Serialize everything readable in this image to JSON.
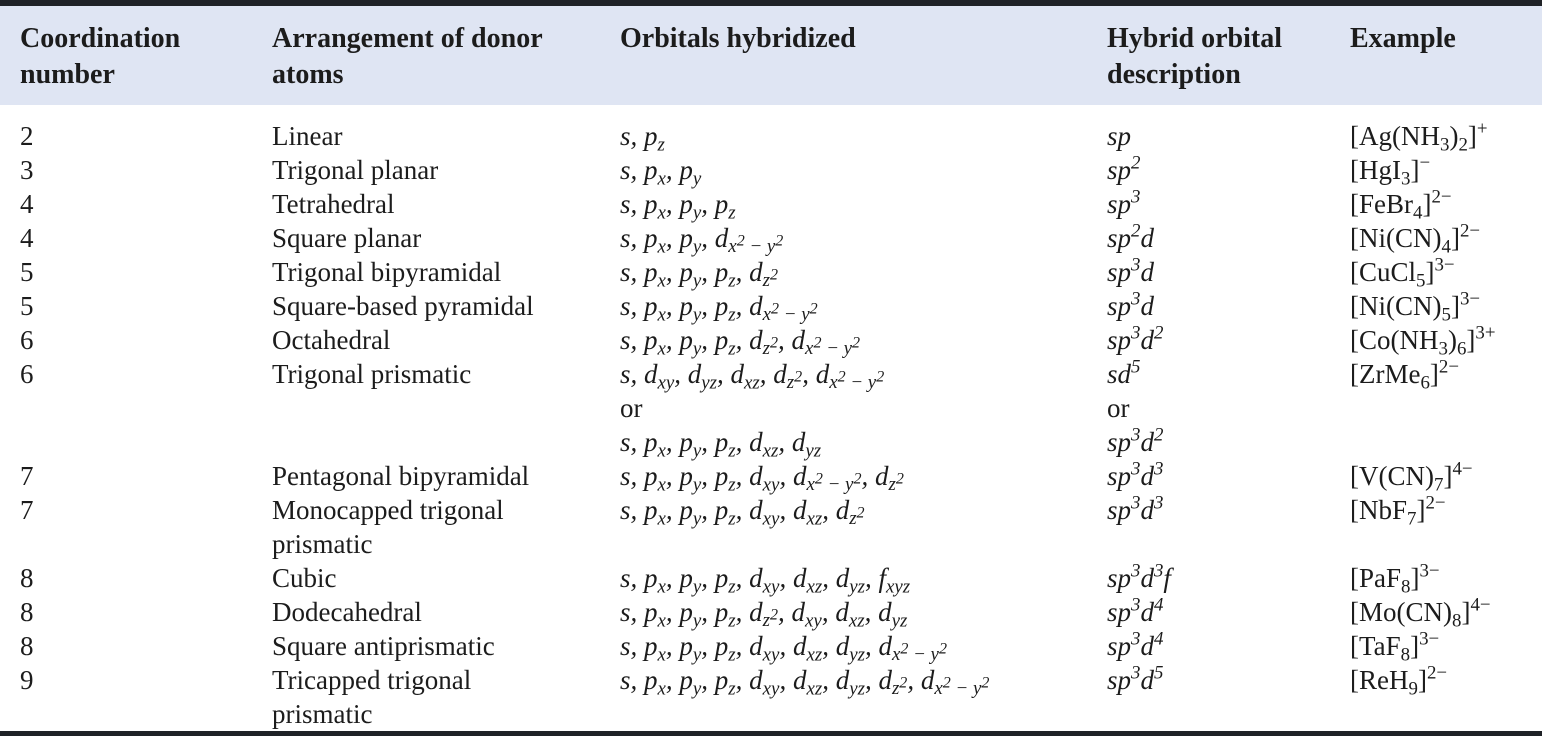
{
  "colors": {
    "rule": "#1f2227",
    "header_bg": "#dfe5f3",
    "body_bg": "#ffffff",
    "text": "#1c1c1c"
  },
  "header": {
    "columns": [
      {
        "lines": [
          "Coordination",
          "number"
        ]
      },
      {
        "lines": [
          "Arrangement of donor",
          "atoms"
        ]
      },
      {
        "lines": [
          "Orbitals hybridized"
        ]
      },
      {
        "lines": [
          "Hybrid orbital",
          "description"
        ]
      },
      {
        "lines": [
          "Example"
        ]
      }
    ]
  },
  "table": {
    "rows": [
      {
        "coordination": "2",
        "arrangement": [
          "Linear"
        ],
        "orbitals": [
          "s, p_{z}"
        ],
        "hybrid": [
          "sp"
        ],
        "example": "[Ag(NH_{3})_{2}]^{+}"
      },
      {
        "coordination": "3",
        "arrangement": [
          "Trigonal planar"
        ],
        "orbitals": [
          "s, p_{x}, p_{y}"
        ],
        "hybrid": [
          "sp^{2}"
        ],
        "example": "[HgI_{3}]^{−}"
      },
      {
        "coordination": "4",
        "arrangement": [
          "Tetrahedral"
        ],
        "orbitals": [
          "s, p_{x}, p_{y}, p_{z}"
        ],
        "hybrid": [
          "sp^{3}"
        ],
        "example": "[FeBr_{4}]^{2−}"
      },
      {
        "coordination": "4",
        "arrangement": [
          "Square planar"
        ],
        "orbitals": [
          "s, p_{x}, p_{y}, d_{x^{2} − y^{2}}"
        ],
        "hybrid": [
          "sp^{2}d"
        ],
        "example": "[Ni(CN)_{4}]^{2−}"
      },
      {
        "coordination": "5",
        "arrangement": [
          "Trigonal bipyramidal"
        ],
        "orbitals": [
          "s, p_{x}, p_{y}, p_{z}, d_{z^{2}}"
        ],
        "hybrid": [
          "sp^{3}d"
        ],
        "example": "[CuCl_{5}]^{3−}"
      },
      {
        "coordination": "5",
        "arrangement": [
          "Square-based pyramidal"
        ],
        "orbitals": [
          "s, p_{x}, p_{y}, p_{z}, d_{x^{2} − y^{2}}"
        ],
        "hybrid": [
          "sp^{3}d"
        ],
        "example": "[Ni(CN)_{5}]^{3−}"
      },
      {
        "coordination": "6",
        "arrangement": [
          "Octahedral"
        ],
        "orbitals": [
          "s, p_{x}, p_{y}, p_{z}, d_{z^{2}}, d_{x^{2} − y^{2}}"
        ],
        "hybrid": [
          "sp^{3}d^{2}"
        ],
        "example": "[Co(NH_{3})_{6}]^{3+}"
      },
      {
        "coordination": "6",
        "arrangement": [
          "Trigonal prismatic"
        ],
        "orbitals": [
          "s, d_{xy}, d_{yz}, d_{xz}, d_{z^{2}}, d_{x^{2} − y^{2}}",
          "or",
          "s, p_{x}, p_{y}, p_{z}, d_{xz}, d_{yz}"
        ],
        "hybrid": [
          "sd^{5}",
          "or",
          "sp^{3}d^{2}"
        ],
        "example": "[ZrMe_{6}]^{2−}"
      },
      {
        "coordination": "7",
        "arrangement": [
          "Pentagonal bipyramidal"
        ],
        "orbitals": [
          "s, p_{x}, p_{y}, p_{z}, d_{xy}, d_{x^{2} − y^{2}}, d_{z^{2}}"
        ],
        "hybrid": [
          "sp^{3}d^{3}"
        ],
        "example": "[V(CN)_{7}]^{4−}"
      },
      {
        "coordination": "7",
        "arrangement": [
          "Monocapped trigonal",
          "prismatic"
        ],
        "orbitals": [
          "s, p_{x}, p_{y}, p_{z}, d_{xy}, d_{xz}, d_{z^{2}}"
        ],
        "hybrid": [
          "sp^{3}d^{3}"
        ],
        "example": "[NbF_{7}]^{2−}"
      },
      {
        "coordination": "8",
        "arrangement": [
          "Cubic"
        ],
        "orbitals": [
          "s, p_{x}, p_{y}, p_{z}, d_{xy}, d_{xz}, d_{yz}, f_{xyz}"
        ],
        "hybrid": [
          "sp^{3}d^{3}f"
        ],
        "example": "[PaF_{8}]^{3−}"
      },
      {
        "coordination": "8",
        "arrangement": [
          "Dodecahedral"
        ],
        "orbitals": [
          "s, p_{x}, p_{y}, p_{z}, d_{z^{2}}, d_{xy}, d_{xz}, d_{yz}"
        ],
        "hybrid": [
          "sp^{3}d^{4}"
        ],
        "example": "[Mo(CN)_{8}]^{4−}"
      },
      {
        "coordination": "8",
        "arrangement": [
          "Square antiprismatic"
        ],
        "orbitals": [
          "s, p_{x}, p_{y}, p_{z}, d_{xy}, d_{xz}, d_{yz}, d_{x^{2} − y^{2}}"
        ],
        "hybrid": [
          "sp^{3}d^{4}"
        ],
        "example": "[TaF_{8}]^{3−}"
      },
      {
        "coordination": "9",
        "arrangement": [
          "Tricapped trigonal",
          "prismatic"
        ],
        "orbitals": [
          "s, p_{x}, p_{y}, p_{z}, d_{xy}, d_{xz}, d_{yz}, d_{z^{2}}, d_{x^{2} − y^{2}}"
        ],
        "hybrid": [
          "sp^{3}d^{5}"
        ],
        "example": "[ReH_{9}]^{2−}"
      }
    ]
  }
}
